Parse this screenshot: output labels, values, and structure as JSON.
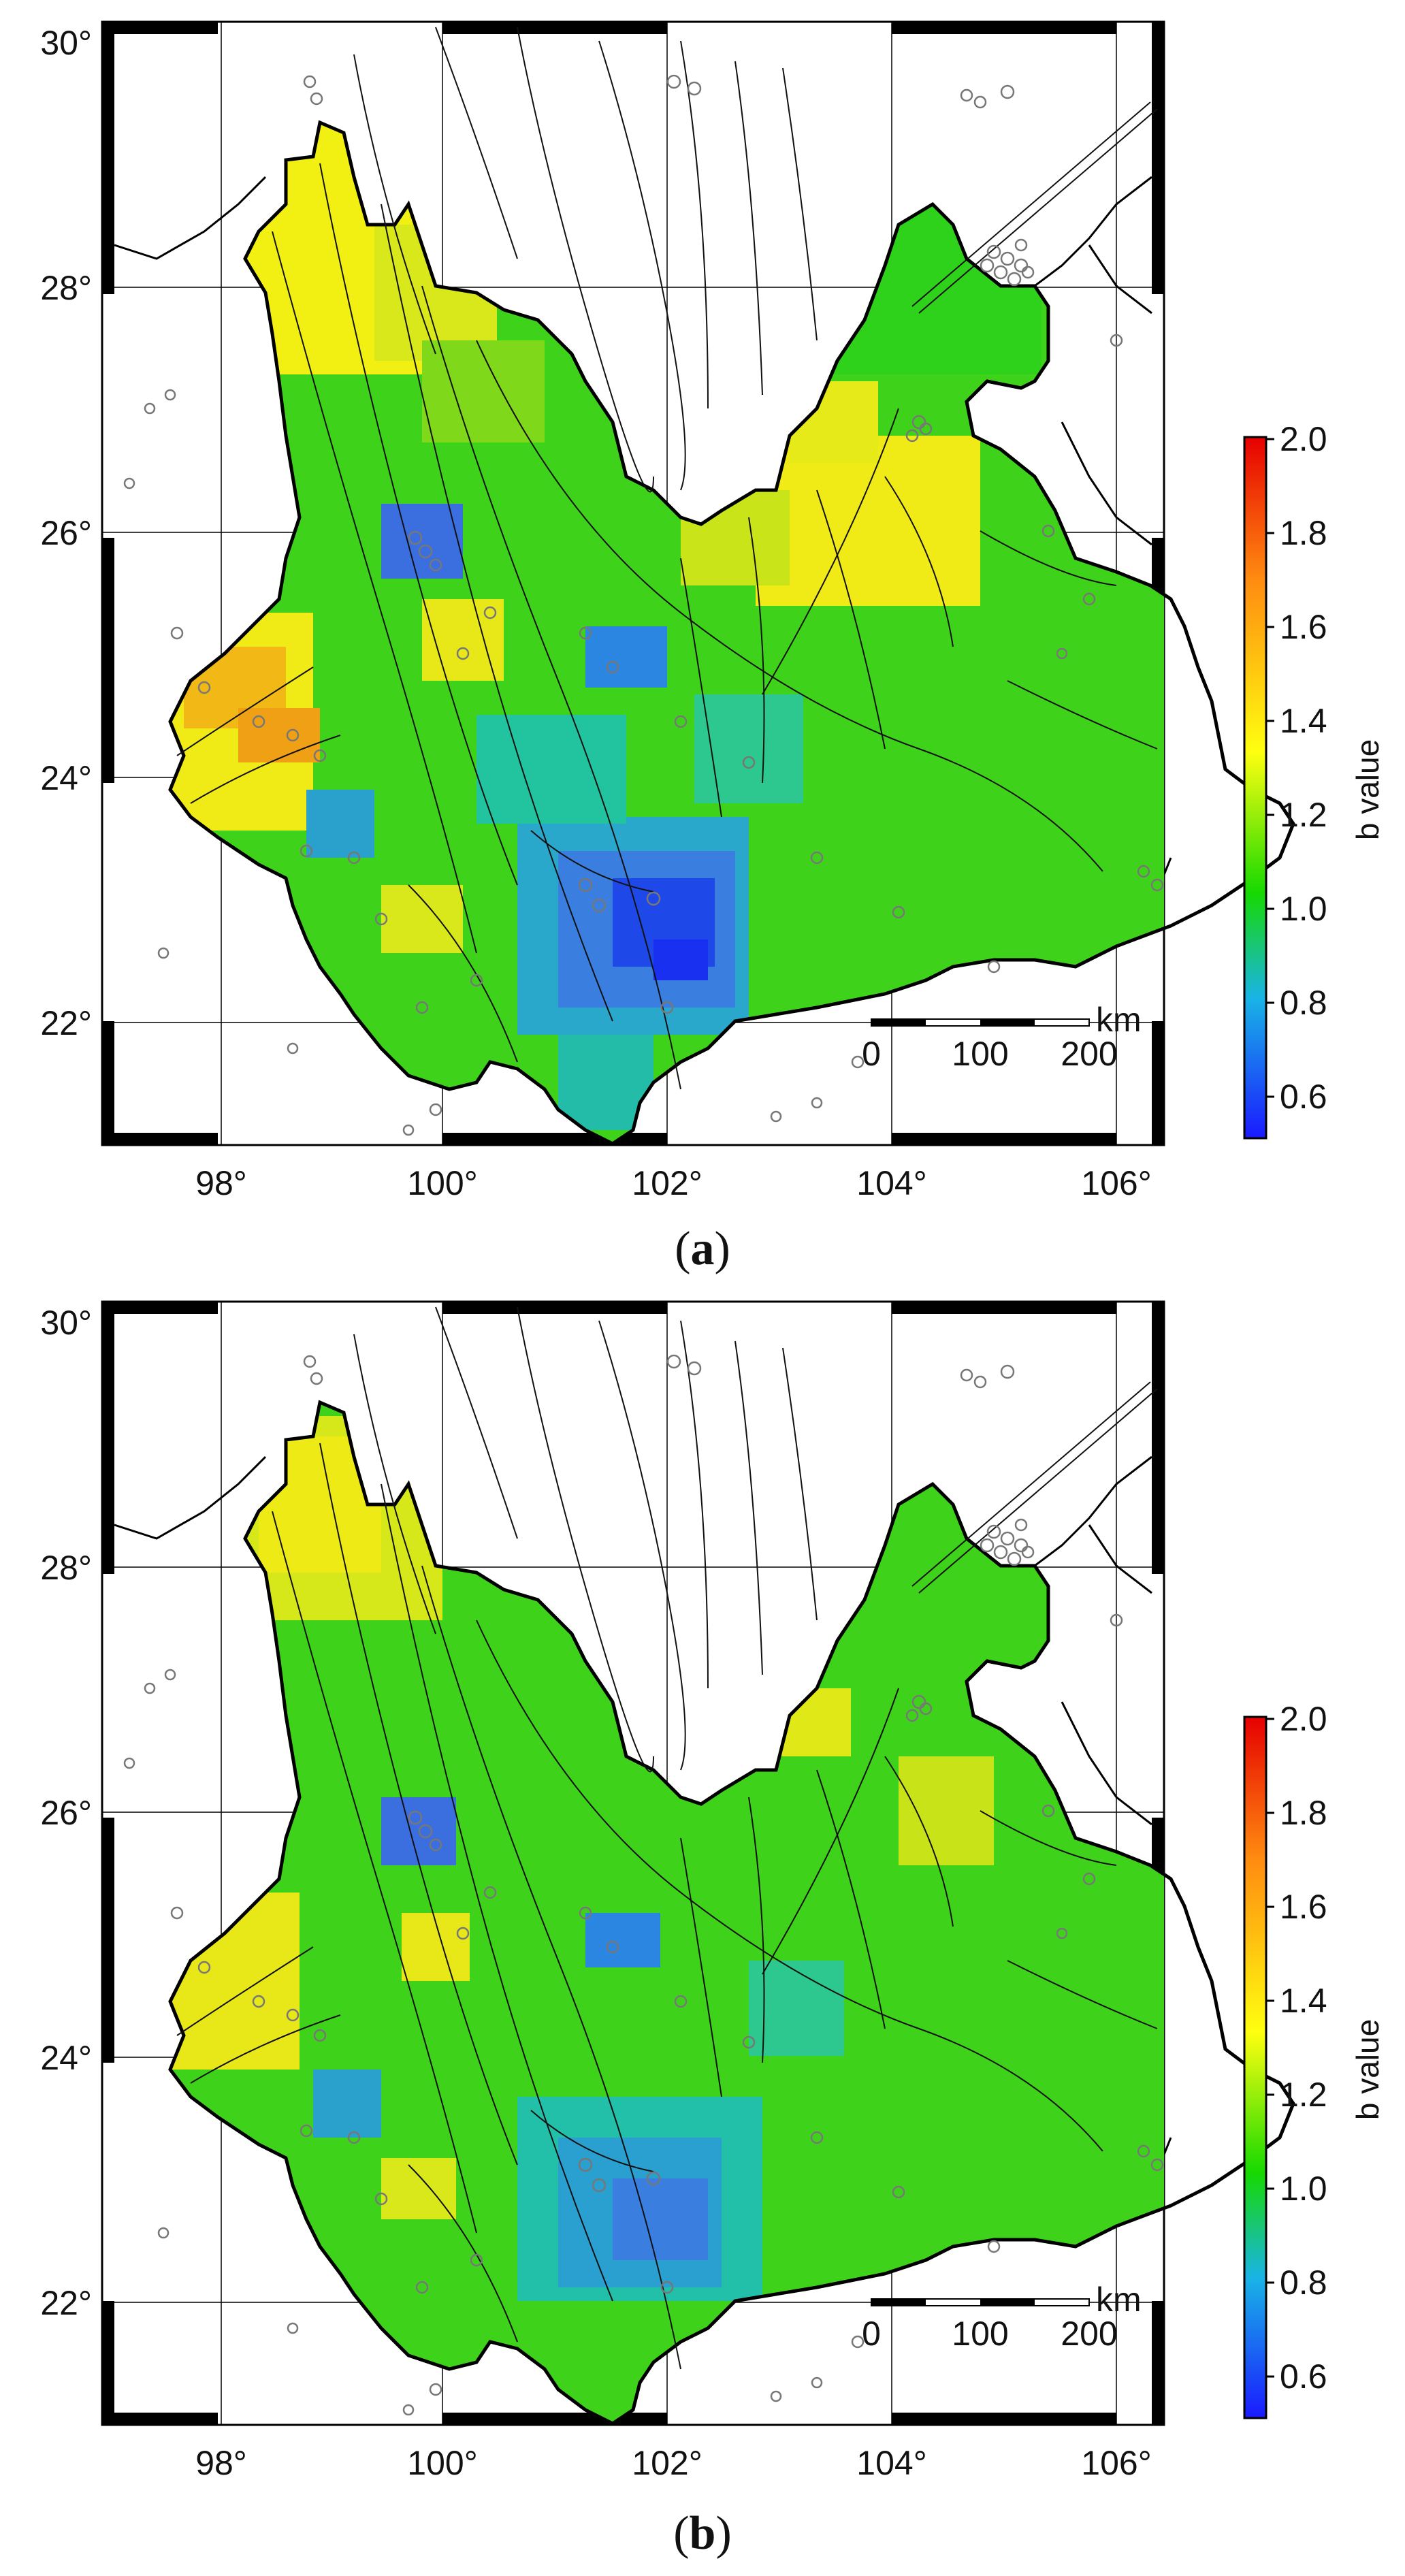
{
  "panels": [
    {
      "id": "a",
      "caption_open": "(",
      "caption_letter": "a",
      "caption_close": ")",
      "lat_ticks": [
        "30°",
        "28°",
        "26°",
        "24°",
        "22°"
      ],
      "lon_ticks": [
        "98°",
        "100°",
        "102°",
        "104°",
        "106°"
      ],
      "scale_unit": "km",
      "scale_labels": [
        "0",
        "100",
        "200"
      ],
      "colorbar_title": "b value",
      "colorbar_ticks": [
        "2.0",
        "1.8",
        "1.6",
        "1.4",
        "1.2",
        "1.0",
        "0.8",
        "0.6"
      ]
    },
    {
      "id": "b",
      "caption_open": "(",
      "caption_letter": "b",
      "caption_close": ")",
      "lat_ticks": [
        "30°",
        "28°",
        "26°",
        "24°",
        "22°"
      ],
      "lon_ticks": [
        "98°",
        "100°",
        "102°",
        "104°",
        "106°"
      ],
      "scale_unit": "km",
      "scale_labels": [
        "0",
        "100",
        "200"
      ],
      "colorbar_title": "b value",
      "colorbar_ticks": [
        "2.0",
        "1.8",
        "1.6",
        "1.4",
        "1.2",
        "1.0",
        "0.8",
        "0.6"
      ]
    }
  ],
  "map": {
    "lon_range": [
      97,
      106.6
    ],
    "lat_range": [
      21,
      30.1
    ],
    "colorbar_range": [
      0.5,
      2.0
    ],
    "colorscale": [
      "#1a1aff",
      "#19b4e6",
      "#16d900",
      "#ffff10",
      "#ff8a10",
      "#e60000"
    ]
  }
}
